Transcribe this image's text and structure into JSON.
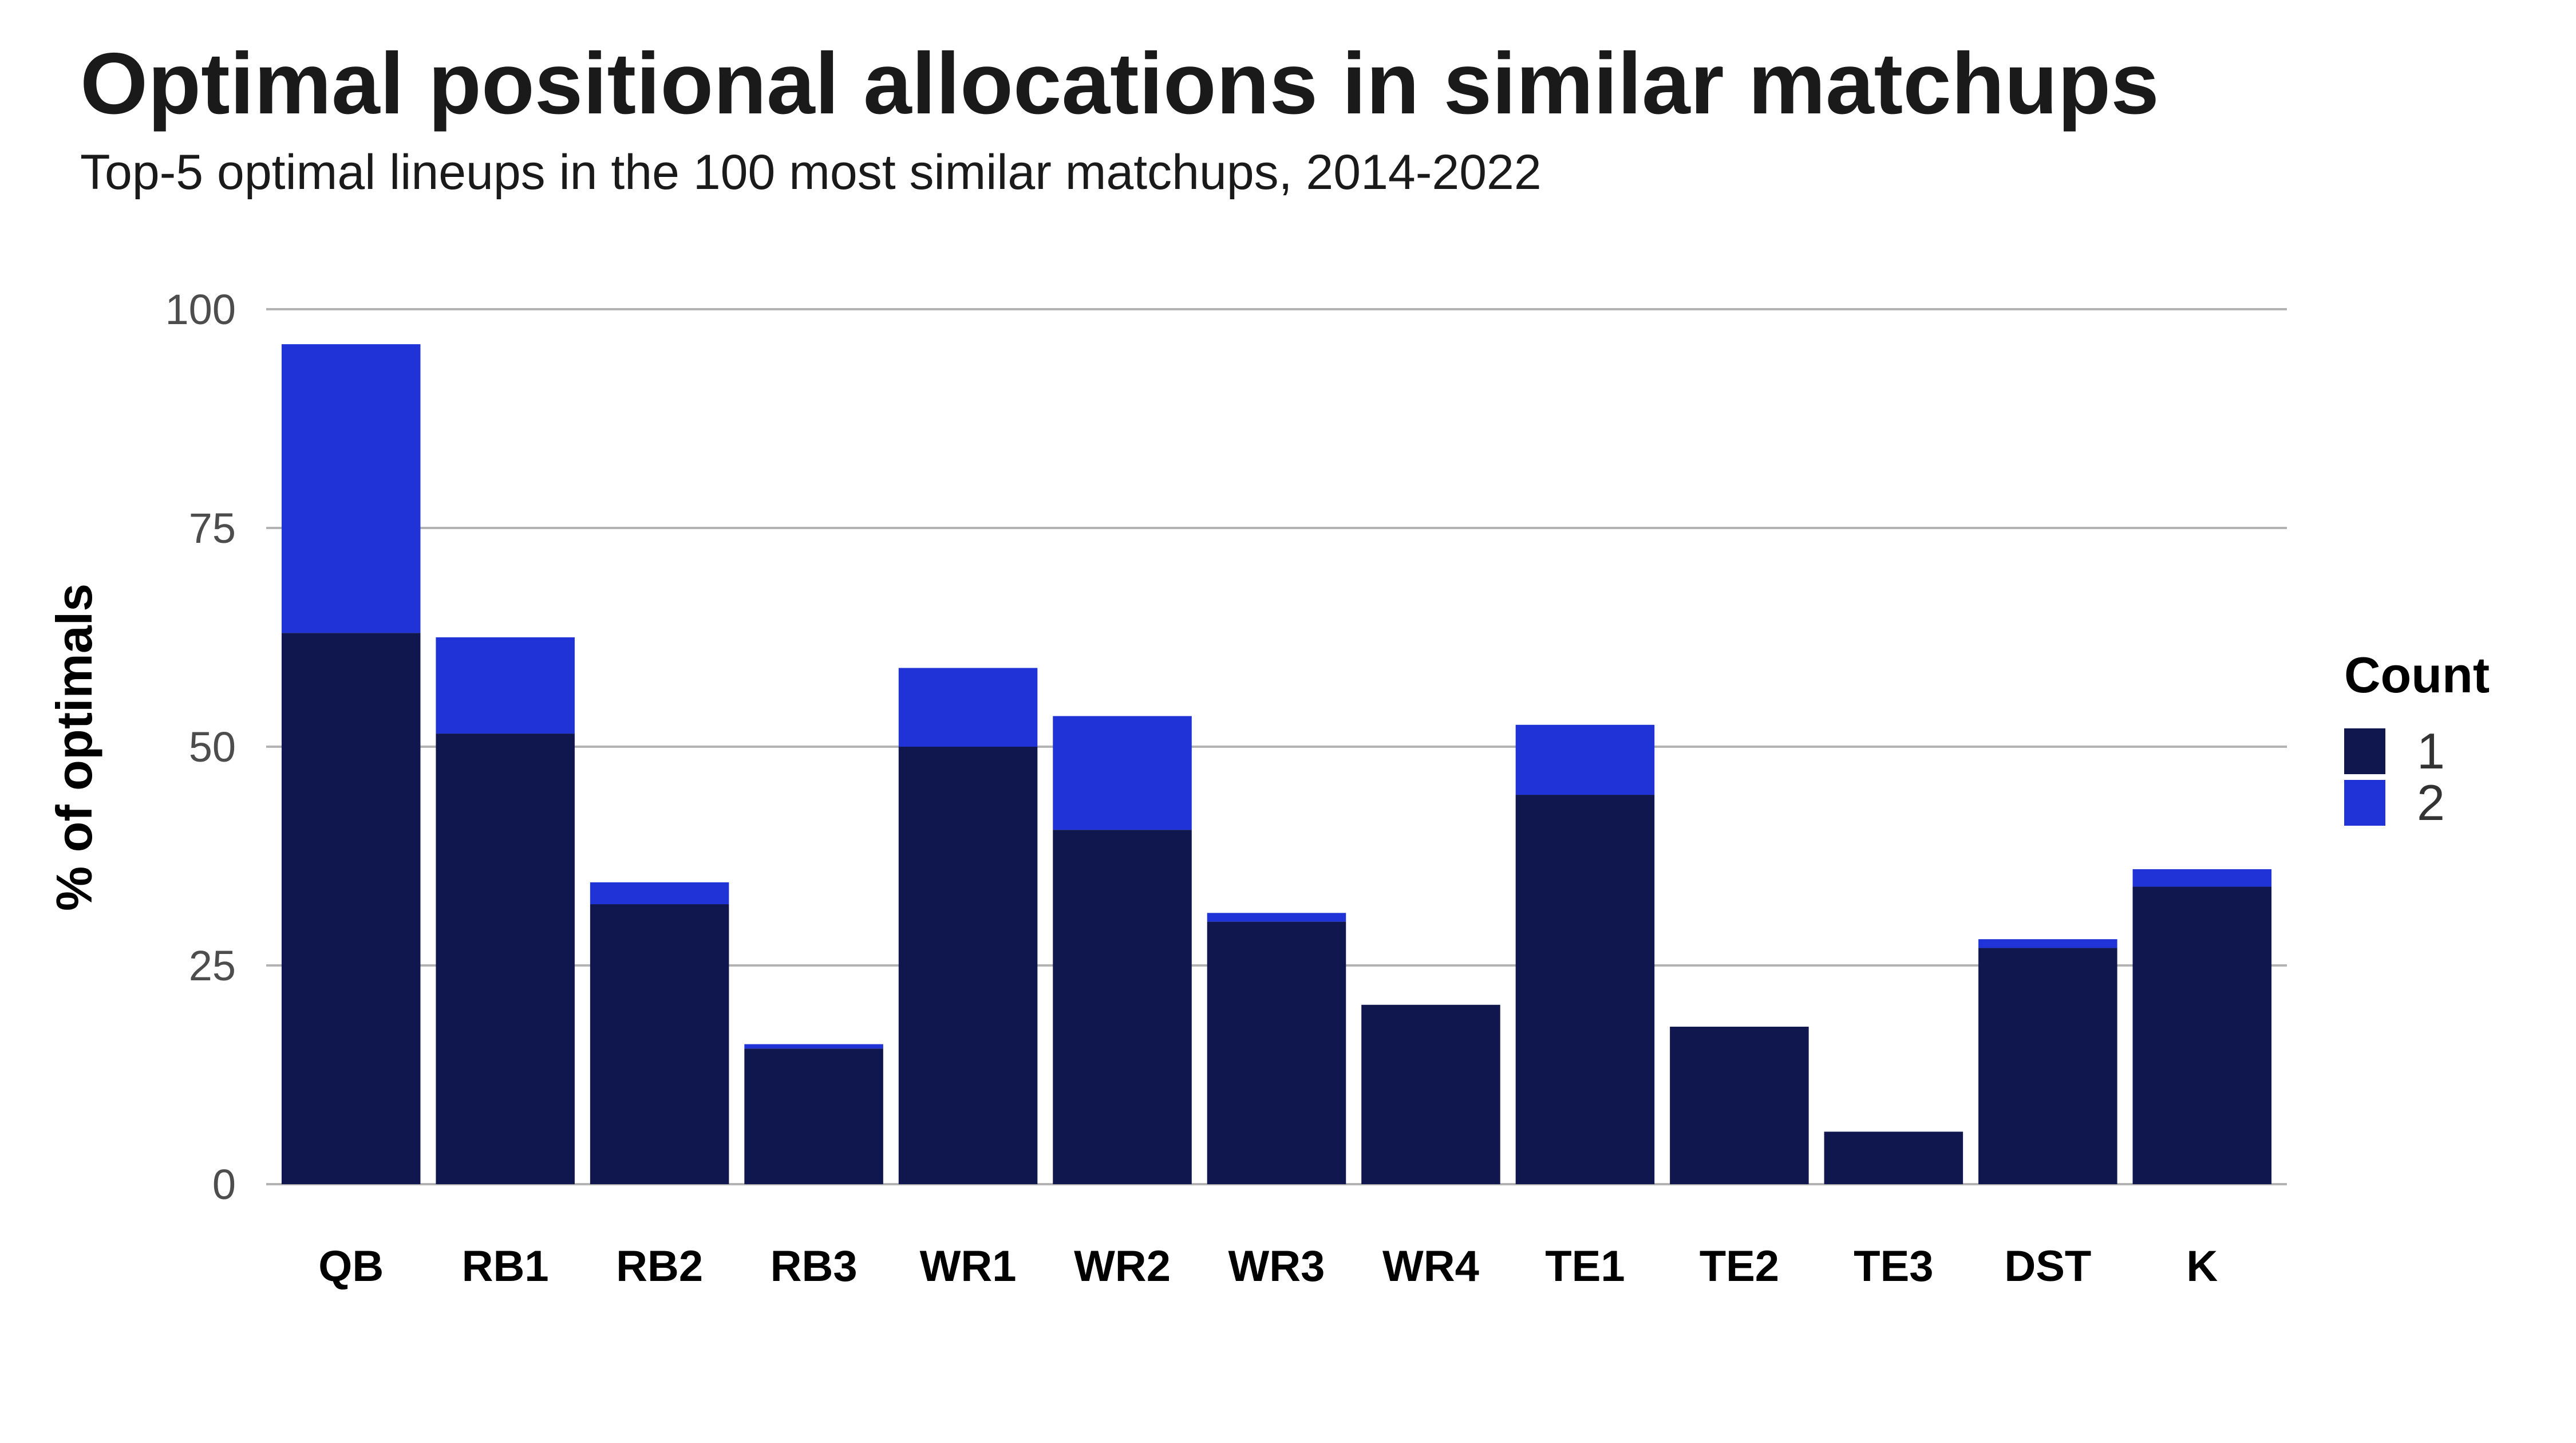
{
  "title": "Optimal positional allocations in similar matchups",
  "subtitle": "Top-5 optimal lineups in the 100 most similar matchups, 2014-2022",
  "chart_data": {
    "type": "bar",
    "stacked": true,
    "title": "Optimal positional allocations in similar matchups",
    "subtitle": "Top-5 optimal lineups in the 100 most similar matchups, 2014-2022",
    "xlabel": "",
    "ylabel": "% of optimals",
    "ylim": [
      0,
      100
    ],
    "yticks": [
      0,
      25,
      50,
      75,
      100
    ],
    "ytick_labels": [
      "0",
      "25",
      "50",
      "75",
      "100"
    ],
    "grid": true,
    "legend": {
      "title": "Count",
      "placement": "right"
    },
    "categories": [
      "QB",
      "RB1",
      "RB2",
      "RB3",
      "WR1",
      "WR2",
      "WR3",
      "WR4",
      "TE1",
      "TE2",
      "TE3",
      "DST",
      "K"
    ],
    "series": [
      {
        "name": "1",
        "color": "#10174f",
        "values": [
          63,
          51.5,
          32,
          15.5,
          50,
          40.5,
          30,
          20.5,
          44.5,
          18,
          6,
          27,
          34
        ]
      },
      {
        "name": "2",
        "color": "#1f33d6",
        "values": [
          33,
          11,
          2.5,
          0.5,
          9,
          13,
          1,
          0,
          8,
          0,
          0,
          1,
          2
        ]
      }
    ]
  }
}
